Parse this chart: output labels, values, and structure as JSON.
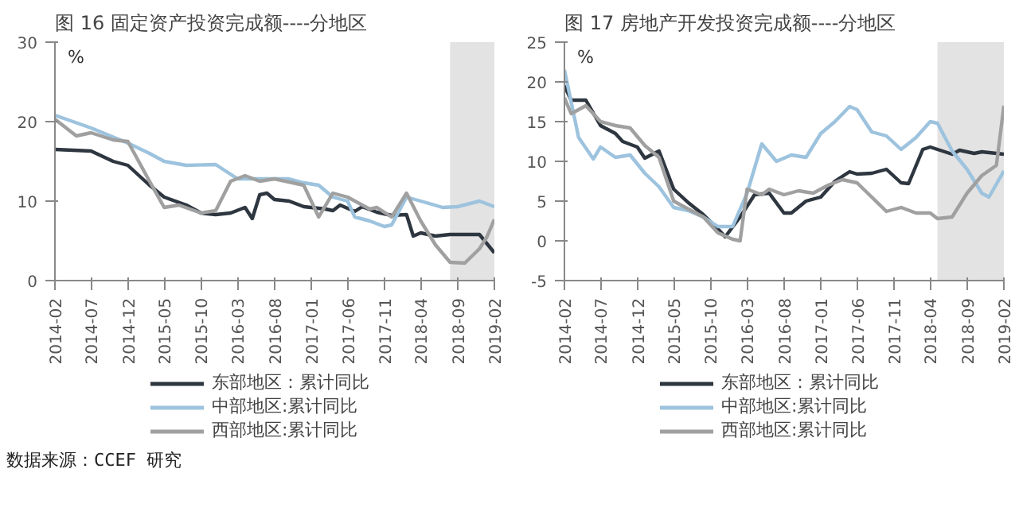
{
  "chart_data": [
    {
      "type": "line",
      "title": "图 16 固定资产投资完成额----分地区",
      "ylabel": "%",
      "xlim": [
        "2014-02",
        "2019-02"
      ],
      "ylim": [
        0,
        30
      ],
      "yticks": [
        0,
        10,
        20,
        30
      ],
      "xticks": [
        "2014-02",
        "2014-07",
        "2014-12",
        "2015-05",
        "2015-10",
        "2016-03",
        "2016-08",
        "2017-01",
        "2017-06",
        "2017-11",
        "2018-04",
        "2018-09",
        "2019-02"
      ],
      "grid": false,
      "legend": "bottom",
      "bands": [
        {
          "axis": "x",
          "from": "2018-08",
          "to": "2019-02",
          "color": "#e3e3e3"
        }
      ],
      "annotations": [
        "数据来源：CCEF 研究"
      ],
      "series": [
        {
          "name": "东部地区：累计同比",
          "color": "#2e3640",
          "x": [
            "2014-02",
            "2014-07",
            "2014-10",
            "2014-12",
            "2015-03",
            "2015-05",
            "2015-08",
            "2015-10",
            "2015-12",
            "2016-02",
            "2016-04",
            "2016-05",
            "2016-06",
            "2016-07",
            "2016-08",
            "2016-10",
            "2016-12",
            "2017-03",
            "2017-04",
            "2017-05",
            "2017-07",
            "2017-08",
            "2017-10",
            "2017-12",
            "2018-02",
            "2018-03",
            "2018-04",
            "2018-06",
            "2018-08",
            "2018-12",
            "2019-02"
          ],
          "values": [
            16.5,
            16.3,
            15,
            14.5,
            12,
            10.5,
            9.5,
            8.5,
            8.3,
            8.5,
            9.2,
            7.8,
            10.8,
            11,
            10.2,
            10,
            9.3,
            9,
            8.8,
            9.5,
            8.7,
            9.3,
            8.6,
            8.2,
            8.3,
            5.6,
            6,
            5.6,
            5.8,
            5.8,
            3.5
          ]
        },
        {
          "name": "中部地区:累计同比",
          "color": "#9dc3de",
          "x": [
            "2014-02",
            "2014-07",
            "2014-12",
            "2015-03",
            "2015-05",
            "2015-08",
            "2015-12",
            "2016-03",
            "2016-06",
            "2016-10",
            "2016-12",
            "2017-02",
            "2017-04",
            "2017-06",
            "2017-07",
            "2017-09",
            "2017-11",
            "2017-12",
            "2018-02",
            "2018-04",
            "2018-07",
            "2018-09",
            "2018-12",
            "2019-02"
          ],
          "values": [
            20.8,
            19.2,
            17.3,
            16,
            15,
            14.5,
            14.6,
            12.8,
            12.8,
            12.8,
            12.3,
            12,
            10.5,
            10,
            8,
            7.5,
            6.8,
            7,
            10.5,
            10,
            9.2,
            9.3,
            10,
            9.3
          ]
        },
        {
          "name": "西部地区:累计同比",
          "color": "#a0a0a0",
          "x": [
            "2014-02",
            "2014-05",
            "2014-07",
            "2014-10",
            "2014-12",
            "2015-03",
            "2015-05",
            "2015-07",
            "2015-10",
            "2015-12",
            "2016-02",
            "2016-04",
            "2016-06",
            "2016-08",
            "2016-12",
            "2017-02",
            "2017-04",
            "2017-06",
            "2017-09",
            "2017-10",
            "2017-12",
            "2018-02",
            "2018-04",
            "2018-06",
            "2018-08",
            "2018-10",
            "2018-12",
            "2019-01",
            "2019-02"
          ],
          "values": [
            20.3,
            18.2,
            18.6,
            17.7,
            17.5,
            12.5,
            9.2,
            9.5,
            8.5,
            8.8,
            12.5,
            13.2,
            12.5,
            12.8,
            12,
            8,
            11,
            10.5,
            9,
            9.2,
            8,
            11,
            7.5,
            4.5,
            2.3,
            2.2,
            4,
            5.5,
            7.7
          ]
        }
      ]
    },
    {
      "type": "line",
      "title": "图 17 房地产开发投资完成额----分地区",
      "ylabel": "%",
      "xlim": [
        "2014-02",
        "2019-02"
      ],
      "ylim": [
        -5,
        25
      ],
      "yticks": [
        -5,
        0,
        5,
        10,
        15,
        20,
        25
      ],
      "xticks": [
        "2014-02",
        "2014-07",
        "2014-12",
        "2015-05",
        "2015-10",
        "2016-03",
        "2016-08",
        "2017-01",
        "2017-06",
        "2017-11",
        "2018-04",
        "2018-09",
        "2019-02"
      ],
      "grid": false,
      "legend": "bottom",
      "bands": [
        {
          "axis": "x",
          "from": "2018-05",
          "to": "2019-02",
          "color": "#e3e3e3"
        }
      ],
      "series": [
        {
          "name": "东部地区：累计同比",
          "color": "#2e3640",
          "x": [
            "2014-02",
            "2014-03",
            "2014-05",
            "2014-07",
            "2014-09",
            "2014-10",
            "2014-12",
            "2015-01",
            "2015-03",
            "2015-05",
            "2015-07",
            "2015-09",
            "2015-11",
            "2015-12",
            "2016-02",
            "2016-04",
            "2016-06",
            "2016-08",
            "2016-09",
            "2016-11",
            "2017-01",
            "2017-03",
            "2017-05",
            "2017-06",
            "2017-08",
            "2017-10",
            "2017-12",
            "2018-01",
            "2018-03",
            "2018-04",
            "2018-06",
            "2018-07",
            "2018-08",
            "2018-10",
            "2018-11",
            "2019-02"
          ],
          "values": [
            19.5,
            17.7,
            17.7,
            14.5,
            13.5,
            12.5,
            11.8,
            10.4,
            11.3,
            6.5,
            4.8,
            3.3,
            1.5,
            0.5,
            3,
            5.8,
            6,
            3.5,
            3.5,
            5,
            5.5,
            7.5,
            8.7,
            8.4,
            8.5,
            9,
            7.3,
            7.2,
            11.5,
            11.8,
            11.2,
            10.9,
            11.4,
            11,
            11.2,
            10.9
          ]
        },
        {
          "name": "中部地区:累计同比",
          "color": "#9dc3de",
          "x": [
            "2014-02",
            "2014-04",
            "2014-06",
            "2014-07",
            "2014-09",
            "2014-11",
            "2015-01",
            "2015-03",
            "2015-05",
            "2015-07",
            "2015-09",
            "2015-11",
            "2016-01",
            "2016-03",
            "2016-05",
            "2016-07",
            "2016-09",
            "2016-11",
            "2017-01",
            "2017-03",
            "2017-05",
            "2017-06",
            "2017-08",
            "2017-10",
            "2017-12",
            "2018-02",
            "2018-04",
            "2018-05",
            "2018-07",
            "2018-09",
            "2018-11",
            "2018-12",
            "2019-02"
          ],
          "values": [
            21.5,
            13,
            10.3,
            11.8,
            10.5,
            10.8,
            8.5,
            6.8,
            4.2,
            3.8,
            3,
            1.8,
            1.8,
            6,
            12.2,
            10,
            10.8,
            10.5,
            13.5,
            15,
            16.9,
            16.5,
            13.7,
            13.2,
            11.5,
            13,
            15,
            14.8,
            11.3,
            9,
            6,
            5.5,
            8.8
          ]
        },
        {
          "name": "西部地区:累计同比",
          "color": "#a0a0a0",
          "x": [
            "2014-02",
            "2014-03",
            "2014-05",
            "2014-07",
            "2014-09",
            "2014-11",
            "2015-01",
            "2015-03",
            "2015-05",
            "2015-07",
            "2015-09",
            "2015-11",
            "2016-01",
            "2016-02",
            "2016-03",
            "2016-05",
            "2016-06",
            "2016-08",
            "2016-10",
            "2016-12",
            "2017-02",
            "2017-04",
            "2017-06",
            "2017-08",
            "2017-10",
            "2017-12",
            "2018-02",
            "2018-04",
            "2018-05",
            "2018-07",
            "2018-09",
            "2018-11",
            "2019-01",
            "2019-02"
          ],
          "values": [
            18,
            16,
            17,
            15,
            14.5,
            14.2,
            12,
            10.5,
            5,
            4,
            3,
            1,
            0.2,
            0,
            6.5,
            5.8,
            6.5,
            5.8,
            6.3,
            6,
            7,
            7.7,
            7.3,
            5.5,
            3.7,
            4.2,
            3.5,
            3.5,
            2.8,
            3,
            6,
            8.2,
            9.5,
            17
          ]
        }
      ]
    }
  ]
}
